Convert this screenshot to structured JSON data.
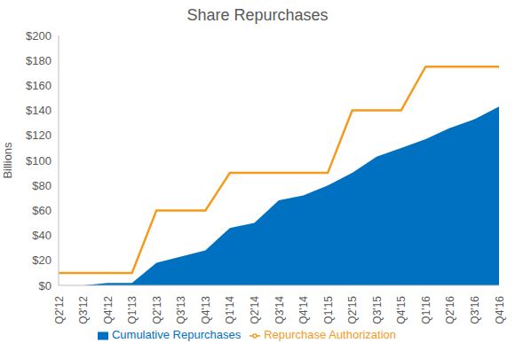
{
  "chart_data": {
    "type": "area",
    "title": "Share Repurchases",
    "y_label": "Billions",
    "categories": [
      "Q2'12",
      "Q3'12",
      "Q4'12",
      "Q1'13",
      "Q2'13",
      "Q3'13",
      "Q4'13",
      "Q1'14",
      "Q2'14",
      "Q3'14",
      "Q4'14",
      "Q1'15",
      "Q2'15",
      "Q3'15",
      "Q4'15",
      "Q1'16",
      "Q2'16",
      "Q3'16",
      "Q4'16"
    ],
    "series": [
      {
        "name": "Cumulative Repurchases",
        "type": "area",
        "color": "#0070c0",
        "values": [
          0,
          0,
          2,
          2,
          18,
          23,
          28,
          46,
          50,
          68,
          72,
          80,
          90,
          103,
          110,
          117,
          126,
          133,
          143
        ]
      },
      {
        "name": "Repurchase Authorization",
        "type": "line",
        "color": "#f59a1b",
        "values": [
          10,
          10,
          10,
          10,
          60,
          60,
          60,
          90,
          90,
          90,
          90,
          90,
          140,
          140,
          140,
          175,
          175,
          175,
          175
        ]
      }
    ],
    "ylim": [
      0,
      200
    ],
    "yticks": [
      {
        "value": 0,
        "label": "$0"
      },
      {
        "value": 20,
        "label": "$20"
      },
      {
        "value": 40,
        "label": "$40"
      },
      {
        "value": 60,
        "label": "$60"
      },
      {
        "value": 80,
        "label": "$80"
      },
      {
        "value": 100,
        "label": "$100"
      },
      {
        "value": 120,
        "label": "$120"
      },
      {
        "value": 140,
        "label": "$140"
      },
      {
        "value": 160,
        "label": "$160"
      },
      {
        "value": 180,
        "label": "$180"
      },
      {
        "value": 200,
        "label": "$200"
      }
    ],
    "grid": false,
    "legend": "bottom"
  }
}
